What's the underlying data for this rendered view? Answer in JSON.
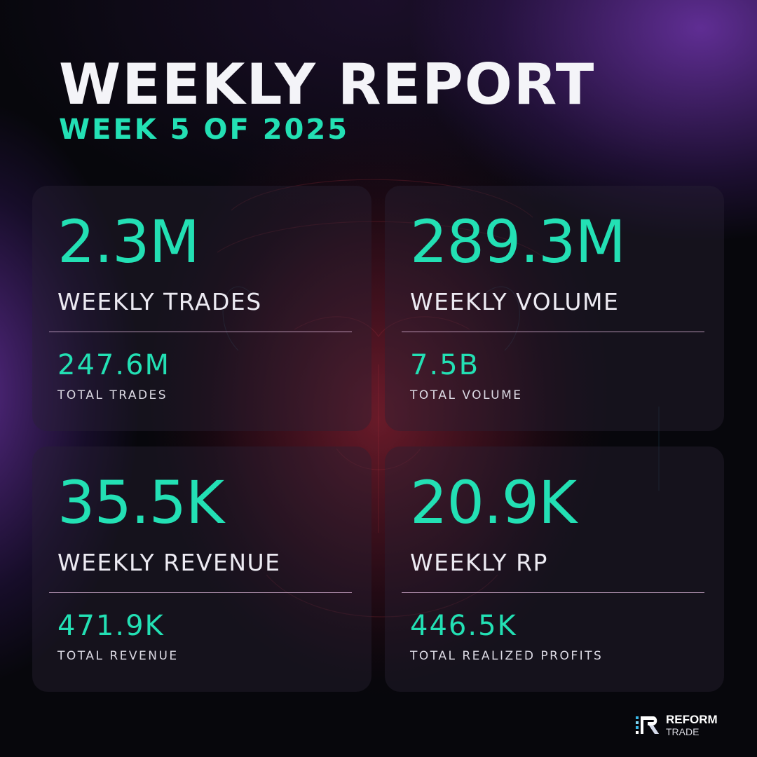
{
  "header": {
    "title": "WEEKLY REPORT",
    "subtitle": "WEEK 5 OF 2025"
  },
  "stats": [
    {
      "weekly_value": "2.3M",
      "weekly_label": "WEEKLY TRADES",
      "total_value": "247.6M",
      "total_label": "TOTAL TRADES"
    },
    {
      "weekly_value": "289.3M",
      "weekly_label": "WEEKLY VOLUME",
      "total_value": "7.5B",
      "total_label": "TOTAL VOLUME"
    },
    {
      "weekly_value": "35.5K",
      "weekly_label": "WEEKLY REVENUE",
      "total_value": "471.9K",
      "total_label": "TOTAL REVENUE"
    },
    {
      "weekly_value": "20.9K",
      "weekly_label": "WEEKLY RP",
      "total_value": "446.5K",
      "total_label": "TOTAL REALIZED PROFITS"
    }
  ],
  "brand": {
    "name": "REFORM",
    "sub": "TRADE",
    "logo_icon": "reform-logo-icon"
  },
  "colors": {
    "accent": "#23e0b4",
    "title": "#f4f4f8",
    "background": "#07070c"
  }
}
